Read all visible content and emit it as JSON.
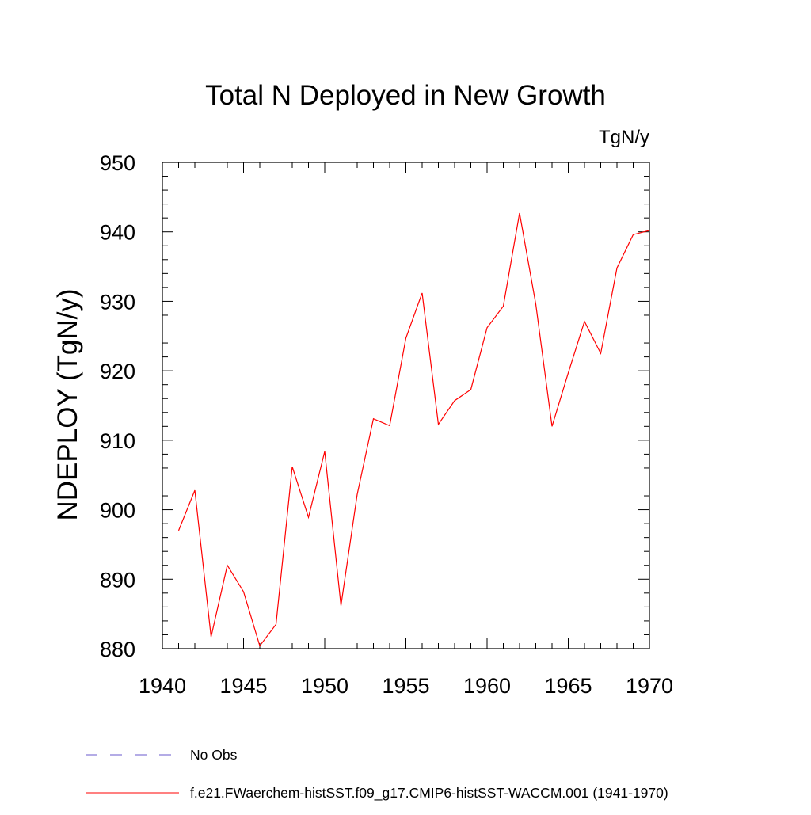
{
  "chart_data": {
    "type": "line",
    "title": "Total N Deployed in New Growth",
    "units_label": "TgN/y",
    "xlabel": "",
    "ylabel": "NDEPLOY  (TgN/y)",
    "xlim": [
      1940,
      1970
    ],
    "ylim": [
      880,
      950
    ],
    "x_ticks": [
      1940,
      1945,
      1950,
      1955,
      1960,
      1965,
      1970
    ],
    "y_ticks": [
      880,
      890,
      900,
      910,
      920,
      930,
      940,
      950
    ],
    "x_minor_step": 1,
    "y_minor_step": 2,
    "grid": false,
    "legend_position": "bottom-left",
    "series": [
      {
        "name": "f.e21.FWaerchem-histSST.f09_g17.CMIP6-histSST-WACCM.001 (1941-1970)",
        "color": "#ff0000",
        "line_style": "solid",
        "x": [
          1941,
          1942,
          1943,
          1944,
          1945,
          1946,
          1947,
          1948,
          1949,
          1950,
          1951,
          1952,
          1953,
          1954,
          1955,
          1956,
          1957,
          1958,
          1959,
          1960,
          1961,
          1962,
          1963,
          1964,
          1965,
          1966,
          1967,
          1968,
          1969,
          1970
        ],
        "y": [
          897.0,
          902.8,
          881.7,
          892.0,
          888.2,
          880.4,
          883.5,
          906.2,
          898.9,
          908.4,
          886.2,
          902.2,
          913.1,
          912.1,
          924.7,
          931.2,
          912.3,
          915.7,
          917.3,
          926.2,
          929.3,
          942.7,
          929.6,
          912.0,
          919.7,
          927.1,
          922.5,
          934.8,
          939.6,
          940.2
        ]
      }
    ],
    "legend": [
      {
        "label": "No Obs",
        "color": "#6a5acd",
        "line_style": "dashed"
      },
      {
        "label": "f.e21.FWaerchem-histSST.f09_g17.CMIP6-histSST-WACCM.001 (1941-1970)",
        "color": "#ff0000",
        "line_style": "solid"
      }
    ]
  }
}
